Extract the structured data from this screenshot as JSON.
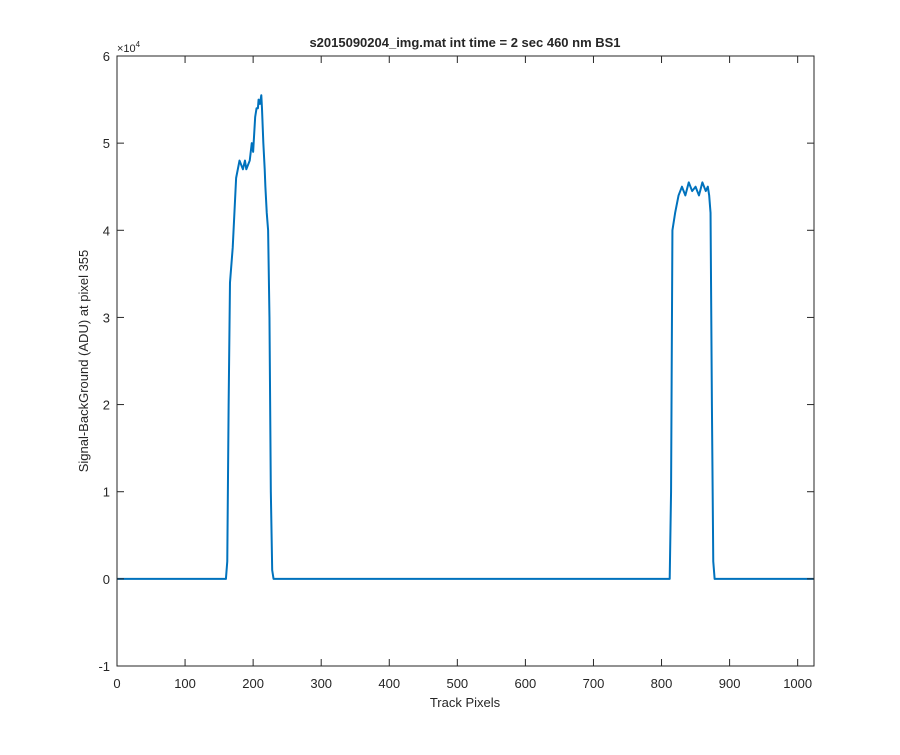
{
  "chart_data": {
    "type": "line",
    "title": "s2015090204_img.mat int time = 2 sec  460 nm BS1",
    "xlabel": "Track Pixels",
    "ylabel": "Signal-BackGround (ADU) at pixel 355",
    "xlim": [
      0,
      1024
    ],
    "ylim": [
      -10000,
      60000
    ],
    "xticks": [
      0,
      100,
      200,
      300,
      400,
      500,
      600,
      700,
      800,
      900,
      1000
    ],
    "xtick_labels": [
      "0",
      "100",
      "200",
      "300",
      "400",
      "500",
      "600",
      "700",
      "800",
      "900",
      "1000"
    ],
    "yticks": [
      -10000,
      0,
      10000,
      20000,
      30000,
      40000,
      50000,
      60000
    ],
    "ytick_labels": [
      "-1",
      "0",
      "1",
      "2",
      "3",
      "4",
      "5",
      "6"
    ],
    "y_exponent_label": "×10",
    "y_exponent_power": "4",
    "grid": false,
    "series": [
      {
        "color": "#0072bd",
        "x": [
          0,
          100,
          160,
          162,
          164,
          166,
          170,
          175,
          180,
          185,
          188,
          190,
          195,
          198,
          200,
          203,
          205,
          207,
          208,
          210,
          212,
          213,
          215,
          217,
          218,
          220,
          222,
          224,
          226,
          228,
          230,
          300,
          400,
          500,
          600,
          700,
          800,
          812,
          814,
          816,
          820,
          825,
          830,
          835,
          840,
          845,
          850,
          855,
          860,
          865,
          868,
          870,
          872,
          874,
          876,
          878,
          900,
          1024
        ],
        "y": [
          0,
          0,
          0,
          2000,
          20000,
          34000,
          38000,
          46000,
          48000,
          47000,
          48000,
          47000,
          48000,
          50000,
          49000,
          53000,
          54000,
          54000,
          55000,
          54500,
          55500,
          54000,
          50000,
          47000,
          45000,
          42000,
          40000,
          30000,
          10000,
          1000,
          0,
          0,
          0,
          0,
          0,
          0,
          0,
          0,
          10000,
          40000,
          42000,
          44000,
          45000,
          44000,
          45500,
          44500,
          45000,
          44000,
          45500,
          44500,
          45000,
          44000,
          42000,
          20000,
          2000,
          0,
          0,
          0
        ]
      }
    ]
  }
}
